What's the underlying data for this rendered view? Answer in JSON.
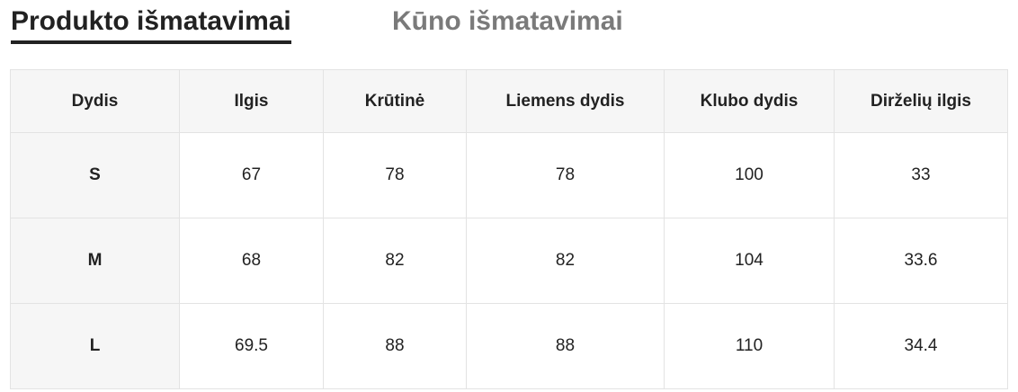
{
  "tabs": [
    {
      "label": "Produkto išmatavimai",
      "active": true
    },
    {
      "label": "Kūno išmatavimai",
      "active": false
    }
  ],
  "table": {
    "headers": [
      "Dydis",
      "Ilgis",
      "Krūtinė",
      "Liemens dydis",
      "Klubo dydis",
      "Dirželių ilgis"
    ],
    "rows": [
      [
        "S",
        "67",
        "78",
        "78",
        "100",
        "33"
      ],
      [
        "M",
        "68",
        "82",
        "82",
        "104",
        "33.6"
      ],
      [
        "L",
        "69.5",
        "88",
        "88",
        "110",
        "34.4"
      ]
    ]
  }
}
